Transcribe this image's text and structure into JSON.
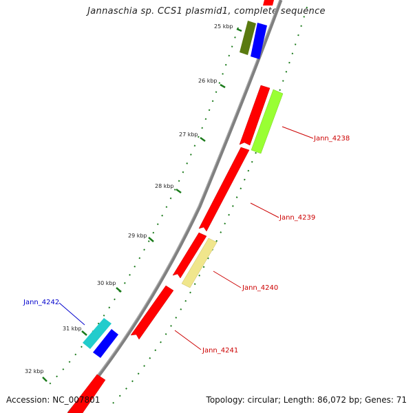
{
  "title": "Jannaschia sp. CCS1 plasmid1, complete sequence",
  "footer": {
    "accession": "Accession: NC_007801",
    "summary": "Topology: circular; Length: 86,072 bp; Genes: 71"
  },
  "kbp_ticks": [
    {
      "label": "25 kbp"
    },
    {
      "label": "26 kbp"
    },
    {
      "label": "27 kbp"
    },
    {
      "label": "28 kbp"
    },
    {
      "label": "29 kbp"
    },
    {
      "label": "30 kbp"
    },
    {
      "label": "31 kbp"
    },
    {
      "label": "32 kbp"
    }
  ],
  "gene_labels": [
    {
      "label": "Jann_4238",
      "color": "#cc0000"
    },
    {
      "label": "Jann_4239",
      "color": "#cc0000"
    },
    {
      "label": "Jann_4240",
      "color": "#cc0000"
    },
    {
      "label": "Jann_4241",
      "color": "#cc0000"
    },
    {
      "label": "Jann_4242",
      "color": "#0000cc"
    }
  ],
  "colors": {
    "red": "#ff0000",
    "blue": "#0000ff",
    "olive": "#5a7a10",
    "lime": "#99ff33",
    "khaki": "#f0e68c",
    "cyan": "#22cccc",
    "backbone": "#808080",
    "tick": "#1a7a1a"
  }
}
